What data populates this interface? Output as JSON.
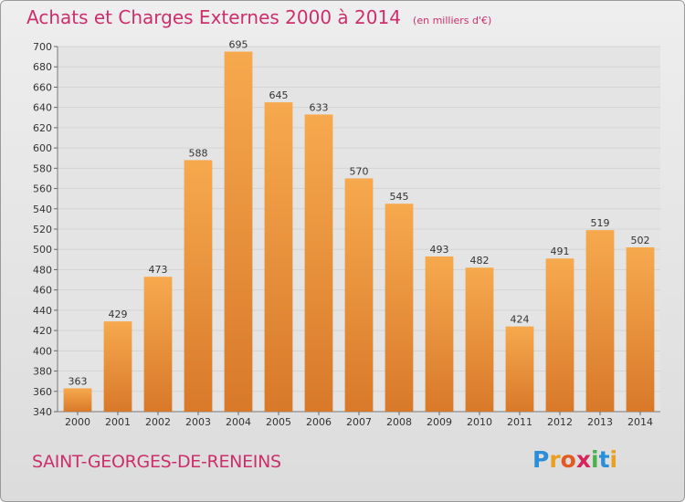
{
  "header": {
    "title": "Achats et Charges Externes 2000 à 2014",
    "subtitle": "(en milliers d'€)"
  },
  "footer": {
    "commune": "SAINT-GEORGES-DE-RENEINS",
    "logo": [
      "P",
      "r",
      "o",
      "x",
      "i",
      "t",
      "i"
    ],
    "logo_colors": [
      "#2a8fd8",
      "#e8a020",
      "#e35a20",
      "#d6245c",
      "#4bb24b",
      "#2a8fd8",
      "#e8a020"
    ]
  },
  "colors": {
    "bar_light": "#f7a94e",
    "bar_dark": "#d8792a",
    "title": "#cc2f6b",
    "grid": "#d4d4d4"
  },
  "chart_data": {
    "type": "bar",
    "categories": [
      "2000",
      "2001",
      "2002",
      "2003",
      "2004",
      "2005",
      "2006",
      "2007",
      "2008",
      "2009",
      "2010",
      "2011",
      "2012",
      "2013",
      "2014"
    ],
    "values": [
      363,
      429,
      473,
      588,
      695,
      645,
      633,
      570,
      545,
      493,
      482,
      424,
      491,
      519,
      502
    ],
    "ylim": [
      340,
      700
    ],
    "yticks": [
      340,
      360,
      380,
      400,
      420,
      440,
      460,
      480,
      500,
      520,
      540,
      560,
      580,
      600,
      620,
      640,
      660,
      680,
      700
    ],
    "grid": true,
    "legend": "none"
  }
}
